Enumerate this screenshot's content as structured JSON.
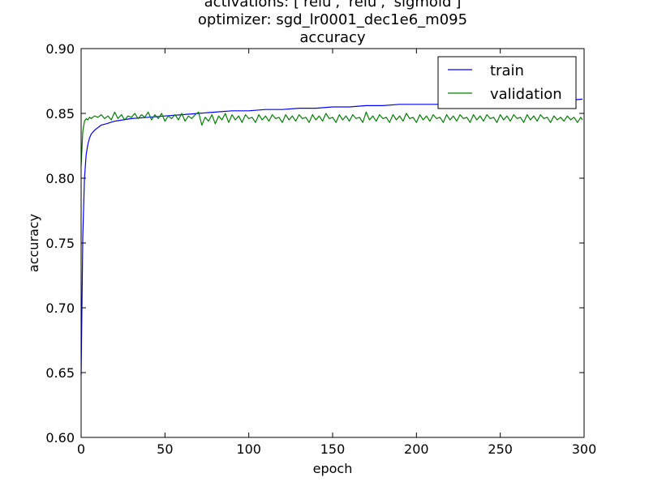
{
  "chart_data": {
    "type": "line",
    "title_lines": [
      "activations: ['relu', 'relu', 'sigmoid']",
      "optimizer: sgd_lr0001_dec1e6_m095",
      "accuracy"
    ],
    "xlabel": "epoch",
    "ylabel": "accuracy",
    "xlim": [
      0,
      300
    ],
    "ylim": [
      0.6,
      0.9
    ],
    "xticks": [
      0,
      50,
      100,
      150,
      200,
      250,
      300
    ],
    "yticks": [
      0.6,
      0.65,
      0.7,
      0.75,
      0.8,
      0.85,
      0.9
    ],
    "xtick_labels": [
      "0",
      "50",
      "100",
      "150",
      "200",
      "250",
      "300"
    ],
    "ytick_labels": [
      "0.60",
      "0.65",
      "0.70",
      "0.75",
      "0.80",
      "0.85",
      "0.90"
    ],
    "grid": false,
    "legend_position": "top-right",
    "series": [
      {
        "name": "train",
        "color": "#0000ff",
        "x": [
          0,
          1,
          2,
          3,
          4,
          5,
          6,
          8,
          10,
          12,
          15,
          20,
          25,
          30,
          40,
          50,
          60,
          70,
          80,
          90,
          100,
          110,
          120,
          130,
          140,
          150,
          160,
          170,
          180,
          190,
          200,
          210,
          220,
          230,
          240,
          250,
          260,
          270,
          280,
          290,
          299
        ],
        "y": [
          0.648,
          0.755,
          0.8,
          0.818,
          0.826,
          0.831,
          0.834,
          0.837,
          0.839,
          0.841,
          0.842,
          0.844,
          0.845,
          0.846,
          0.847,
          0.848,
          0.849,
          0.85,
          0.851,
          0.852,
          0.852,
          0.853,
          0.853,
          0.854,
          0.854,
          0.855,
          0.855,
          0.856,
          0.856,
          0.857,
          0.857,
          0.857,
          0.857,
          0.858,
          0.858,
          0.858,
          0.859,
          0.859,
          0.859,
          0.86,
          0.861
        ]
      },
      {
        "name": "validation",
        "color": "#008000",
        "x": [
          0,
          1,
          2,
          3,
          4,
          5,
          6,
          8,
          10,
          12,
          14,
          16,
          18,
          20,
          22,
          24,
          26,
          28,
          30,
          32,
          34,
          36,
          38,
          40,
          42,
          44,
          46,
          48,
          50,
          52,
          54,
          56,
          58,
          60,
          62,
          64,
          66,
          68,
          70,
          72,
          74,
          76,
          78,
          80,
          82,
          84,
          86,
          88,
          90,
          92,
          94,
          96,
          98,
          100,
          102,
          104,
          106,
          108,
          110,
          112,
          114,
          116,
          118,
          120,
          122,
          124,
          126,
          128,
          130,
          132,
          134,
          136,
          138,
          140,
          142,
          144,
          146,
          148,
          150,
          152,
          154,
          156,
          158,
          160,
          162,
          164,
          166,
          168,
          170,
          172,
          174,
          176,
          178,
          180,
          182,
          184,
          186,
          188,
          190,
          192,
          194,
          196,
          198,
          200,
          202,
          204,
          206,
          208,
          210,
          212,
          214,
          216,
          218,
          220,
          222,
          224,
          226,
          228,
          230,
          232,
          234,
          236,
          238,
          240,
          242,
          244,
          246,
          248,
          250,
          252,
          254,
          256,
          258,
          260,
          262,
          264,
          266,
          268,
          270,
          272,
          274,
          276,
          278,
          280,
          282,
          284,
          286,
          288,
          290,
          292,
          294,
          296,
          298,
          299
        ],
        "y": [
          0.81,
          0.836,
          0.844,
          0.846,
          0.845,
          0.847,
          0.846,
          0.848,
          0.847,
          0.849,
          0.846,
          0.848,
          0.845,
          0.851,
          0.846,
          0.849,
          0.845,
          0.848,
          0.847,
          0.85,
          0.846,
          0.849,
          0.847,
          0.851,
          0.845,
          0.849,
          0.846,
          0.85,
          0.844,
          0.848,
          0.846,
          0.849,
          0.845,
          0.85,
          0.844,
          0.848,
          0.846,
          0.849,
          0.851,
          0.841,
          0.847,
          0.844,
          0.849,
          0.842,
          0.848,
          0.845,
          0.85,
          0.843,
          0.849,
          0.845,
          0.848,
          0.843,
          0.849,
          0.846,
          0.847,
          0.843,
          0.849,
          0.845,
          0.848,
          0.844,
          0.849,
          0.846,
          0.847,
          0.843,
          0.849,
          0.845,
          0.848,
          0.844,
          0.849,
          0.846,
          0.847,
          0.843,
          0.849,
          0.845,
          0.848,
          0.844,
          0.85,
          0.846,
          0.847,
          0.843,
          0.849,
          0.845,
          0.848,
          0.844,
          0.849,
          0.846,
          0.847,
          0.843,
          0.851,
          0.845,
          0.848,
          0.844,
          0.849,
          0.846,
          0.847,
          0.843,
          0.849,
          0.845,
          0.848,
          0.844,
          0.85,
          0.846,
          0.847,
          0.843,
          0.849,
          0.845,
          0.848,
          0.844,
          0.849,
          0.846,
          0.847,
          0.843,
          0.849,
          0.845,
          0.848,
          0.844,
          0.849,
          0.846,
          0.847,
          0.843,
          0.849,
          0.845,
          0.848,
          0.844,
          0.849,
          0.846,
          0.847,
          0.843,
          0.849,
          0.845,
          0.848,
          0.844,
          0.849,
          0.846,
          0.847,
          0.843,
          0.849,
          0.845,
          0.848,
          0.844,
          0.849,
          0.846,
          0.847,
          0.843,
          0.848,
          0.845,
          0.847,
          0.844,
          0.848,
          0.845,
          0.847,
          0.843,
          0.847,
          0.845
        ]
      }
    ]
  }
}
